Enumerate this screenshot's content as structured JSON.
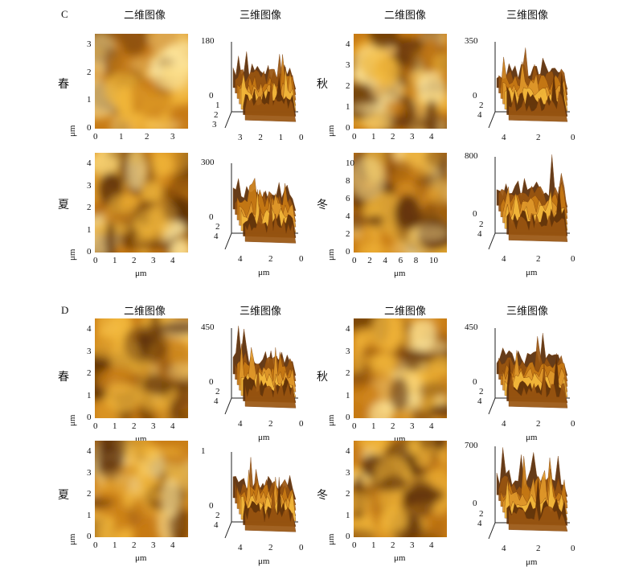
{
  "labels": {
    "panel_c": "C",
    "panel_d": "D",
    "head_2d": "二维图像",
    "head_3d": "三维图像",
    "unit": "μm"
  },
  "seasons": {
    "spring": "春",
    "summer": "夏",
    "autumn": "秋",
    "winter": "冬"
  },
  "panels": {
    "C": {
      "spring": {
        "y_ticks": [
          "0",
          "1",
          "2",
          "3"
        ],
        "x_ticks": [
          "0",
          "1",
          "2",
          "3"
        ],
        "z_top": "180",
        "z_zero": "0",
        "d_ticks": [
          "1",
          "2",
          "3"
        ],
        "x3_ticks": [
          "3",
          "2",
          "1",
          "0"
        ]
      },
      "summer": {
        "y_ticks": [
          "0",
          "1",
          "2",
          "3",
          "4"
        ],
        "x_ticks": [
          "0",
          "1",
          "2",
          "3",
          "4"
        ],
        "z_top": "300",
        "z_zero": "0",
        "d_ticks": [
          "2",
          "4"
        ],
        "x3_ticks": [
          "4",
          "2",
          "0"
        ]
      },
      "autumn": {
        "y_ticks": [
          "0",
          "1",
          "2",
          "3",
          "4"
        ],
        "x_ticks": [
          "0",
          "1",
          "2",
          "3",
          "4"
        ],
        "z_top": "350",
        "z_zero": "0",
        "d_ticks": [
          "2",
          "4"
        ],
        "x3_ticks": [
          "4",
          "2",
          "0"
        ]
      },
      "winter": {
        "y_ticks": [
          "0",
          "2",
          "4",
          "6",
          "8",
          "10"
        ],
        "x_ticks": [
          "0",
          "2",
          "4",
          "6",
          "8",
          "10"
        ],
        "z_top": "800",
        "z_zero": "0",
        "d_ticks": [
          "2",
          "4"
        ],
        "x3_ticks": [
          "4",
          "2",
          "0"
        ]
      }
    },
    "D": {
      "spring": {
        "y_ticks": [
          "0",
          "1",
          "2",
          "3",
          "4"
        ],
        "x_ticks": [
          "0",
          "1",
          "2",
          "3",
          "4"
        ],
        "z_top": "450",
        "z_zero": "0",
        "d_ticks": [
          "2",
          "4"
        ],
        "x3_ticks": [
          "4",
          "2",
          "0"
        ]
      },
      "summer": {
        "y_ticks": [
          "0",
          "1",
          "2",
          "3",
          "4"
        ],
        "x_ticks": [
          "0",
          "1",
          "2",
          "3",
          "4"
        ],
        "z_top": "1",
        "z_zero": "0",
        "d_ticks": [
          "2",
          "4"
        ],
        "x3_ticks": [
          "4",
          "2",
          "0"
        ]
      },
      "autumn": {
        "y_ticks": [
          "0",
          "1",
          "2",
          "3",
          "4"
        ],
        "x_ticks": [
          "0",
          "1",
          "2",
          "3",
          "4"
        ],
        "z_top": "450",
        "z_zero": "0",
        "d_ticks": [
          "2",
          "4"
        ],
        "x3_ticks": [
          "4",
          "2",
          "0"
        ]
      },
      "winter": {
        "y_ticks": [
          "0",
          "1",
          "2",
          "3",
          "4"
        ],
        "x_ticks": [
          "0",
          "1",
          "2",
          "3",
          "4"
        ],
        "z_top": "700",
        "z_zero": "0",
        "d_ticks": [
          "2",
          "4"
        ],
        "x3_ticks": [
          "4",
          "2",
          "0"
        ]
      }
    }
  },
  "colors": {
    "dark": "#5a2c06",
    "mid": "#c77a14",
    "bright": "#f2b73a",
    "highlight": "#ffe9a0"
  }
}
